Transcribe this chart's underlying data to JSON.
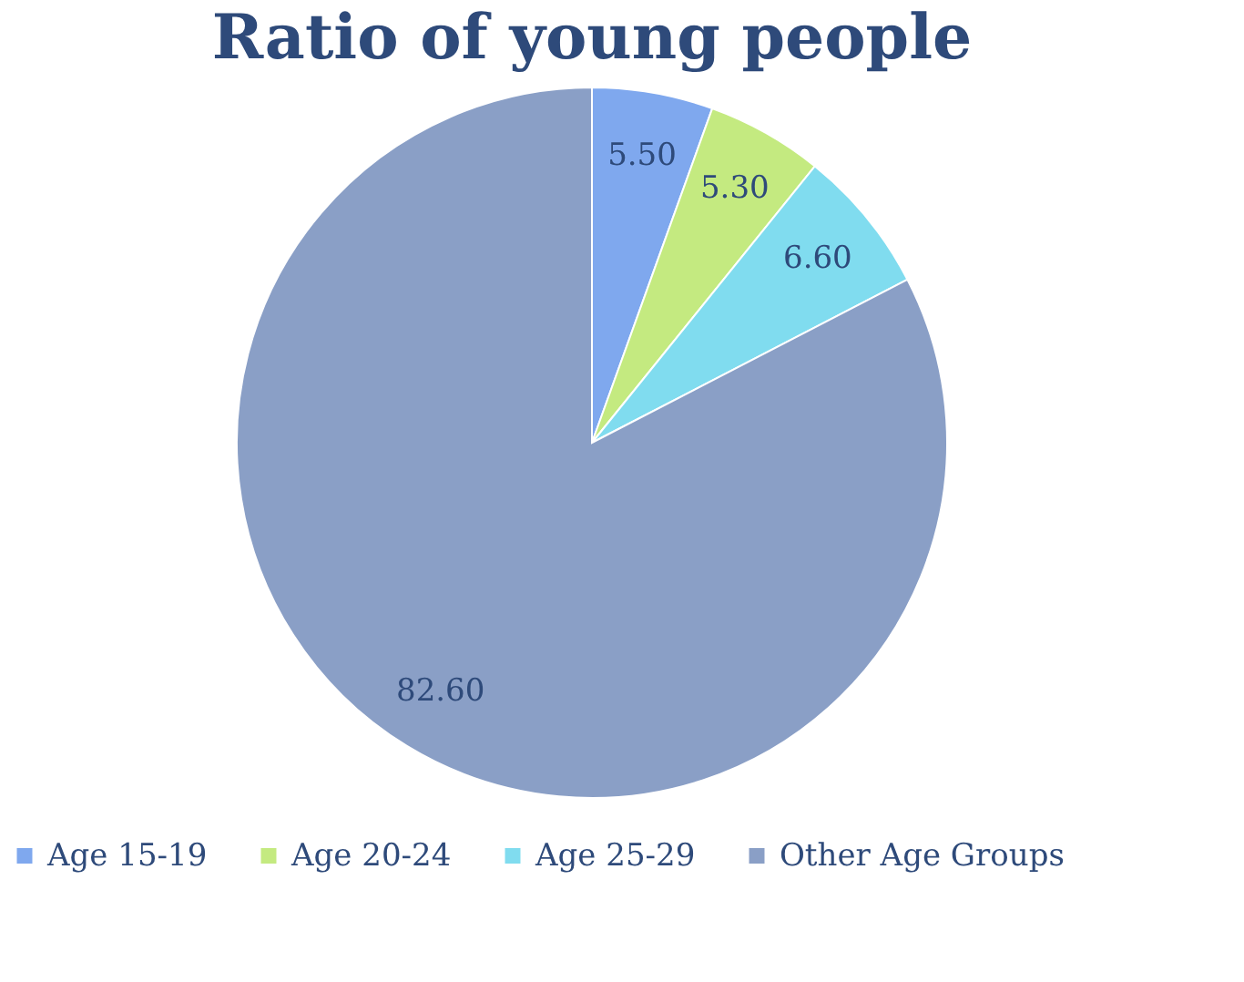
{
  "chart_data": {
    "type": "pie",
    "title": "Ratio of young people",
    "categories": [
      "Age 15-19",
      "Age 20-24",
      "Age 25-29",
      "Other Age Groups"
    ],
    "values": [
      5.5,
      5.3,
      6.6,
      82.6
    ],
    "value_labels": [
      "5.50",
      "5.30",
      "6.60",
      "82.60"
    ],
    "colors": [
      "#7fa8ee",
      "#c4ea80",
      "#80dcef",
      "#8a9fc6"
    ],
    "legend": "bottom"
  }
}
